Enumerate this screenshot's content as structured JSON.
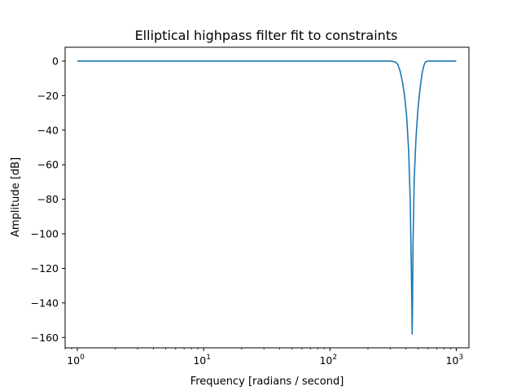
{
  "chart_data": {
    "type": "line",
    "title": "Elliptical highpass filter fit to constraints",
    "xlabel": "Frequency [radians / second]",
    "ylabel": "Amplitude [dB]",
    "xscale": "log",
    "xlim": [
      0.8,
      1260
    ],
    "ylim": [
      -166,
      8
    ],
    "grid": false,
    "x_ticks": [
      {
        "base": "10",
        "exp": "0",
        "value": 1
      },
      {
        "base": "10",
        "exp": "1",
        "value": 10
      },
      {
        "base": "10",
        "exp": "2",
        "value": 100
      },
      {
        "base": "10",
        "exp": "3",
        "value": 1000
      }
    ],
    "y_ticks": [
      0,
      -20,
      -40,
      -60,
      -80,
      -100,
      -120,
      -140,
      -160
    ],
    "y_tick_labels": [
      "0",
      "−20",
      "−40",
      "−60",
      "−80",
      "−100",
      "−120",
      "−140",
      "−160"
    ],
    "series": [
      {
        "color": "#1f77b4",
        "x": [
          1,
          10,
          100,
          300,
          330,
          345,
          360,
          375,
          390,
          405,
          420,
          432,
          440,
          445,
          448,
          451,
          455,
          465,
          480,
          495,
          510,
          525,
          540,
          555,
          570,
          600,
          700,
          1000
        ],
        "y": [
          0,
          0,
          0,
          0,
          -0.5,
          -2,
          -6,
          -12,
          -20,
          -32,
          -52,
          -80,
          -115,
          -140,
          -158,
          -140,
          -105,
          -68,
          -45,
          -30,
          -20,
          -12,
          -6,
          -2.5,
          -0.5,
          0,
          0,
          0
        ]
      }
    ]
  }
}
